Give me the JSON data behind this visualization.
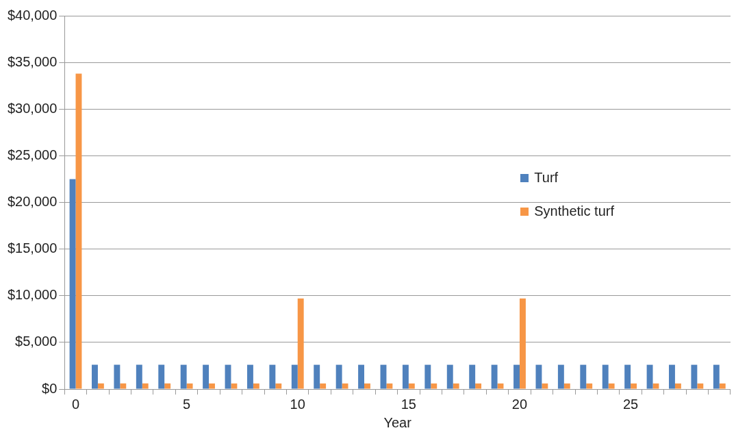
{
  "chart_data": {
    "type": "bar",
    "xlabel": "Year",
    "categories": [
      "0",
      null,
      null,
      null,
      null,
      "5",
      null,
      null,
      null,
      null,
      "10",
      null,
      null,
      null,
      null,
      "15",
      null,
      null,
      null,
      null,
      "20",
      null,
      null,
      null,
      null,
      "25",
      null,
      null,
      null,
      null
    ],
    "series": [
      {
        "name": "Turf",
        "color": "#4f81bd",
        "values": [
          22500,
          2600,
          2600,
          2600,
          2600,
          2600,
          2600,
          2600,
          2600,
          2600,
          2600,
          2600,
          2600,
          2600,
          2600,
          2600,
          2600,
          2600,
          2600,
          2600,
          2600,
          2600,
          2600,
          2600,
          2600,
          2600,
          2600,
          2600,
          2600,
          2600
        ]
      },
      {
        "name": "Synthetic turf",
        "color": "#f79646",
        "values": [
          33800,
          600,
          600,
          600,
          600,
          600,
          600,
          600,
          600,
          600,
          9700,
          600,
          600,
          600,
          600,
          600,
          600,
          600,
          600,
          600,
          9700,
          600,
          600,
          600,
          600,
          600,
          600,
          600,
          600,
          600
        ]
      }
    ],
    "ylim": [
      0,
      40000
    ],
    "yticks": [
      {
        "value": 0,
        "label": "$0"
      },
      {
        "value": 5000,
        "label": "$5,000"
      },
      {
        "value": 10000,
        "label": "$10,000"
      },
      {
        "value": 15000,
        "label": "$15,000"
      },
      {
        "value": 20000,
        "label": "$20,000"
      },
      {
        "value": 25000,
        "label": "$25,000"
      },
      {
        "value": 30000,
        "label": "$30,000"
      },
      {
        "value": 35000,
        "label": "$35,000"
      },
      {
        "value": 40000,
        "label": "$40,000"
      }
    ],
    "grid": "y",
    "legend": "right"
  }
}
